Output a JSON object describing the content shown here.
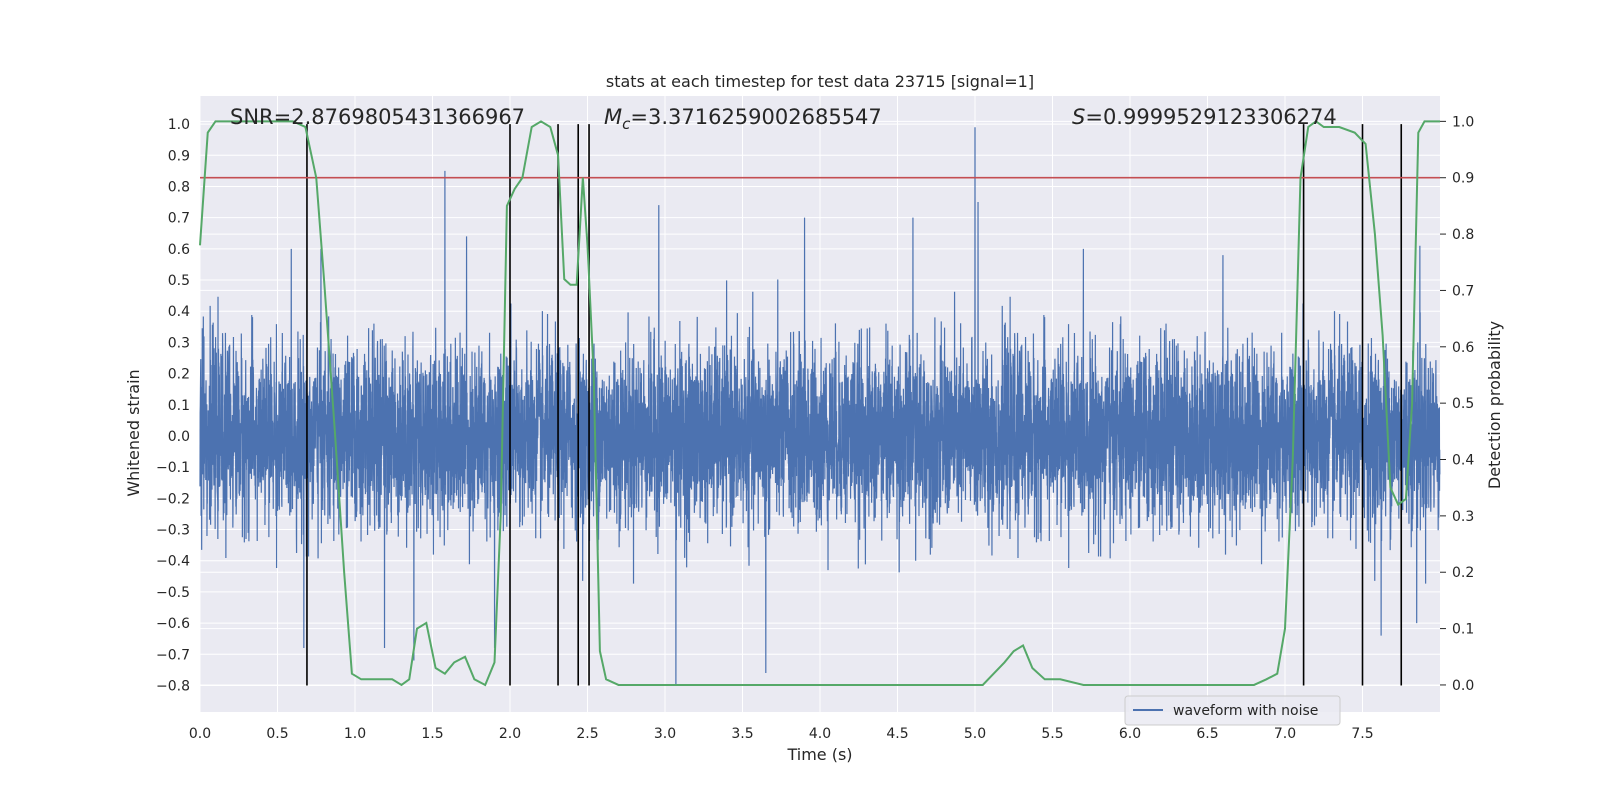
{
  "chart_data": {
    "type": "line",
    "title": "stats at each timestep for test data 23715 [signal=1]",
    "xlabel": "Time (s)",
    "ylabel_left": "Whitened strain",
    "ylabel_right": "Detection probability",
    "xlim": [
      0.0,
      8.0
    ],
    "ylim_left": [
      -0.885,
      1.09
    ],
    "ylim_right": [
      -0.048,
      1.045
    ],
    "x_ticks": [
      "0.0",
      "0.5",
      "1.0",
      "1.5",
      "2.0",
      "2.5",
      "3.0",
      "3.5",
      "4.0",
      "4.5",
      "5.0",
      "5.5",
      "6.0",
      "6.5",
      "7.0",
      "7.5"
    ],
    "y_ticks_left": [
      "1.0",
      "0.9",
      "0.8",
      "0.7",
      "0.6",
      "0.5",
      "0.4",
      "0.3",
      "0.2",
      "0.1",
      "0.0",
      "−0.1",
      "−0.2",
      "−0.3",
      "−0.4",
      "−0.5",
      "−0.6",
      "−0.7",
      "−0.8"
    ],
    "y_ticks_right": [
      "1.0",
      "0.9",
      "0.8",
      "0.7",
      "0.6",
      "0.5",
      "0.4",
      "0.3",
      "0.2",
      "0.1",
      "0.0"
    ],
    "grid": true,
    "legend": {
      "placement": "lower-right",
      "entries": [
        "waveform with noise"
      ]
    },
    "annotations": {
      "snr": "SNR=2.8769805431366967",
      "mc_symbol": "M",
      "mc_sub": "c",
      "mc_value": "=3.3716259002685547",
      "s_symbol": "S",
      "s_value": "=0.9999529123306274"
    },
    "threshold_prob": 0.9,
    "vertical_lines_s": [
      0.69,
      2.0,
      2.31,
      2.44,
      2.51,
      7.12,
      7.5,
      7.75
    ],
    "waveform": {
      "name": "waveform with noise",
      "sample_rate": 1024,
      "noise_sd": 0.14,
      "spikes": [
        {
          "t": 1.58,
          "v": 0.85
        },
        {
          "t": 5.0,
          "v": 0.99
        },
        {
          "t": 5.02,
          "v": 0.75
        },
        {
          "t": 3.07,
          "v": -0.8
        },
        {
          "t": 3.65,
          "v": -0.76
        },
        {
          "t": 2.96,
          "v": 0.74
        },
        {
          "t": 4.6,
          "v": 0.7
        },
        {
          "t": 3.9,
          "v": 0.7
        },
        {
          "t": 1.72,
          "v": 0.64
        },
        {
          "t": 0.67,
          "v": -0.68
        },
        {
          "t": 1.19,
          "v": -0.68
        },
        {
          "t": 1.38,
          "v": -0.72
        },
        {
          "t": 1.9,
          "v": -0.68
        },
        {
          "t": 7.62,
          "v": -0.64
        },
        {
          "t": 7.85,
          "v": -0.6
        },
        {
          "t": 0.78,
          "v": 0.6
        },
        {
          "t": 6.6,
          "v": 0.58
        },
        {
          "t": 7.87,
          "v": 0.61
        }
      ]
    },
    "probability": {
      "color": "#55a868",
      "x": [
        0.0,
        0.05,
        0.1,
        0.2,
        0.3,
        0.4,
        0.5,
        0.6,
        0.68,
        0.75,
        0.8,
        0.87,
        0.93,
        0.98,
        1.04,
        1.1,
        1.17,
        1.24,
        1.3,
        1.35,
        1.4,
        1.46,
        1.52,
        1.58,
        1.64,
        1.71,
        1.77,
        1.84,
        1.9,
        1.94,
        1.98,
        2.03,
        2.08,
        2.14,
        2.2,
        2.26,
        2.31,
        2.35,
        2.39,
        2.43,
        2.47,
        2.5,
        2.54,
        2.58,
        2.62,
        2.7,
        2.8,
        2.95,
        3.1,
        3.5,
        4.0,
        4.5,
        4.8,
        4.95,
        5.05,
        5.12,
        5.19,
        5.25,
        5.31,
        5.37,
        5.45,
        5.55,
        5.7,
        6.0,
        6.5,
        6.8,
        6.88,
        6.95,
        7.0,
        7.05,
        7.1,
        7.15,
        7.2,
        7.25,
        7.35,
        7.45,
        7.52,
        7.58,
        7.63,
        7.68,
        7.73,
        7.78,
        7.82,
        7.86,
        7.9,
        7.95,
        8.0
      ],
      "values": [
        0.78,
        0.98,
        1.0,
        1.0,
        1.0,
        1.0,
        1.0,
        1.0,
        0.99,
        0.9,
        0.72,
        0.45,
        0.2,
        0.02,
        0.01,
        0.01,
        0.01,
        0.01,
        0.0,
        0.01,
        0.1,
        0.11,
        0.03,
        0.02,
        0.04,
        0.05,
        0.01,
        0.0,
        0.04,
        0.3,
        0.85,
        0.88,
        0.9,
        0.99,
        1.0,
        0.99,
        0.94,
        0.72,
        0.71,
        0.71,
        0.9,
        0.78,
        0.55,
        0.06,
        0.01,
        0.0,
        0.0,
        0.0,
        0.0,
        0.0,
        0.0,
        0.0,
        0.0,
        0.0,
        0.0,
        0.02,
        0.04,
        0.06,
        0.07,
        0.03,
        0.01,
        0.01,
        0.0,
        0.0,
        0.0,
        0.0,
        0.01,
        0.02,
        0.1,
        0.4,
        0.9,
        0.99,
        1.0,
        0.99,
        0.99,
        0.98,
        0.96,
        0.8,
        0.62,
        0.35,
        0.32,
        0.33,
        0.5,
        0.98,
        1.0,
        1.0,
        1.0
      ]
    }
  }
}
